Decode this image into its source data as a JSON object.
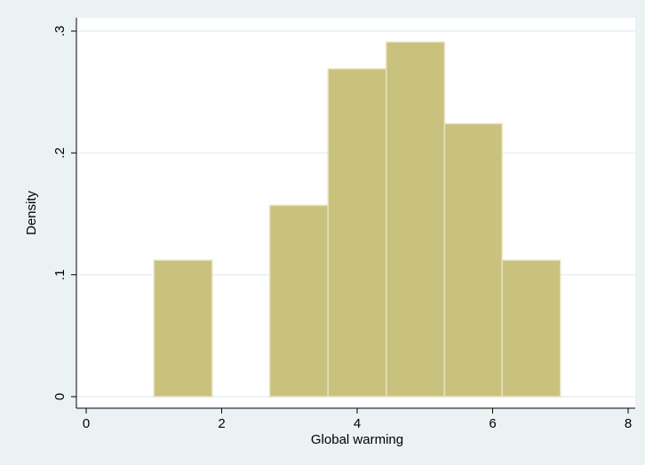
{
  "chart_data": {
    "type": "bar",
    "title": "",
    "xlabel": "Global warming",
    "ylabel": "Density",
    "xlim": [
      0,
      8
    ],
    "ylim": [
      0,
      0.3
    ],
    "x_ticks": [
      {
        "value": 0,
        "label": "0"
      },
      {
        "value": 2,
        "label": "2"
      },
      {
        "value": 4,
        "label": "4"
      },
      {
        "value": 6,
        "label": "6"
      },
      {
        "value": 8,
        "label": "8"
      }
    ],
    "y_ticks": [
      {
        "value": 0,
        "label": "0"
      },
      {
        "value": 0.1,
        "label": ".1"
      },
      {
        "value": 0.2,
        "label": ".2"
      },
      {
        "value": 0.3,
        "label": ".3"
      }
    ],
    "bins": [
      {
        "start": 1.0,
        "end": 1.86,
        "density": 0.112
      },
      {
        "start": 1.86,
        "end": 2.71,
        "density": 0.0
      },
      {
        "start": 2.71,
        "end": 3.57,
        "density": 0.157
      },
      {
        "start": 3.57,
        "end": 4.43,
        "density": 0.269
      },
      {
        "start": 4.43,
        "end": 5.29,
        "density": 0.291
      },
      {
        "start": 5.29,
        "end": 6.14,
        "density": 0.224
      },
      {
        "start": 6.14,
        "end": 7.0,
        "density": 0.112
      }
    ],
    "grid": "horizontal",
    "legend": "none",
    "colors": {
      "background": "#eaf2f3",
      "plot_background": "#ffffff",
      "bar_fill": "#c9c17e",
      "bar_edge": "#e8e3bd",
      "gridline": "#e3e9ee",
      "axis": "#000000"
    }
  }
}
